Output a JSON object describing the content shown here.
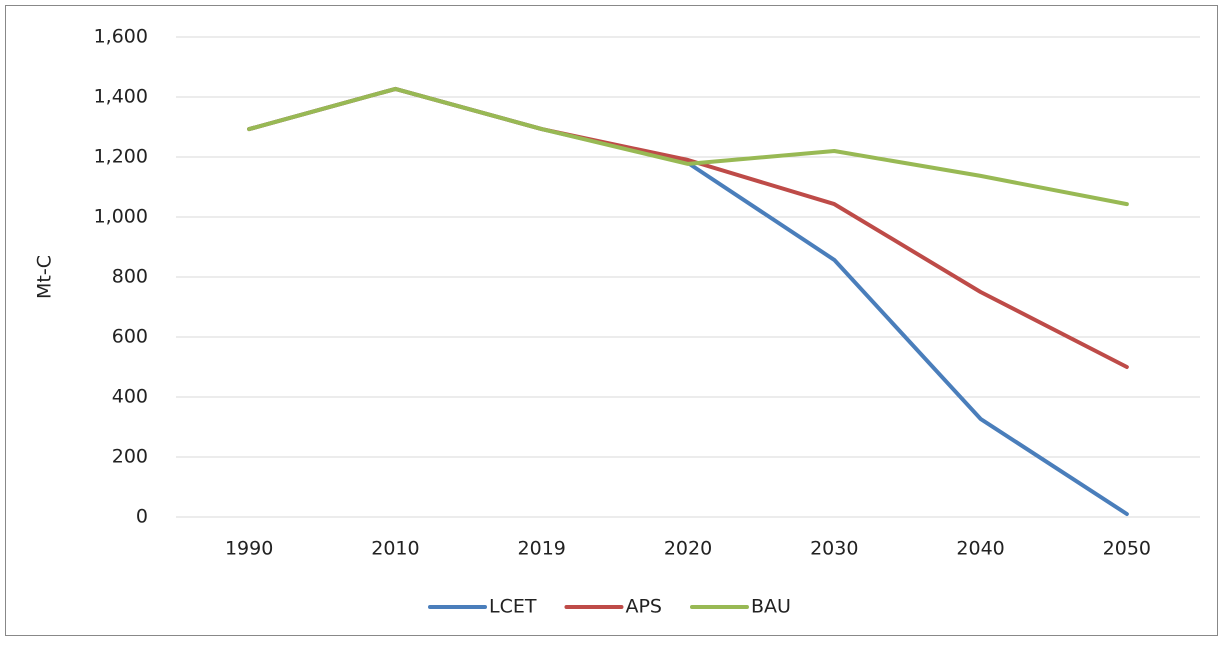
{
  "chart_data": {
    "type": "line",
    "y_label": "Mt-C",
    "categories": [
      "1990",
      "2010",
      "2019",
      "2020",
      "2030",
      "2040",
      "2050"
    ],
    "series": [
      {
        "name": "LCET",
        "color": "#4a7ebb",
        "values": [
          1293,
          1427,
          1293,
          1180,
          857,
          327,
          10
        ]
      },
      {
        "name": "APS",
        "color": "#be4b48",
        "values": [
          1293,
          1427,
          1293,
          1190,
          1043,
          750,
          500
        ]
      },
      {
        "name": "BAU",
        "color": "#98b954",
        "values": [
          1293,
          1427,
          1293,
          1177,
          1220,
          1137,
          1043
        ]
      }
    ],
    "ylim": [
      0,
      1600
    ],
    "yticks": [
      0,
      200,
      400,
      600,
      800,
      {
        "value": 1000,
        "label": "1,000"
      },
      {
        "value": 1200,
        "label": "1,200"
      },
      {
        "value": 1400,
        "label": "1,400"
      },
      {
        "value": 1600,
        "label": "1,600"
      }
    ],
    "grid": true,
    "legend": "bottom"
  }
}
